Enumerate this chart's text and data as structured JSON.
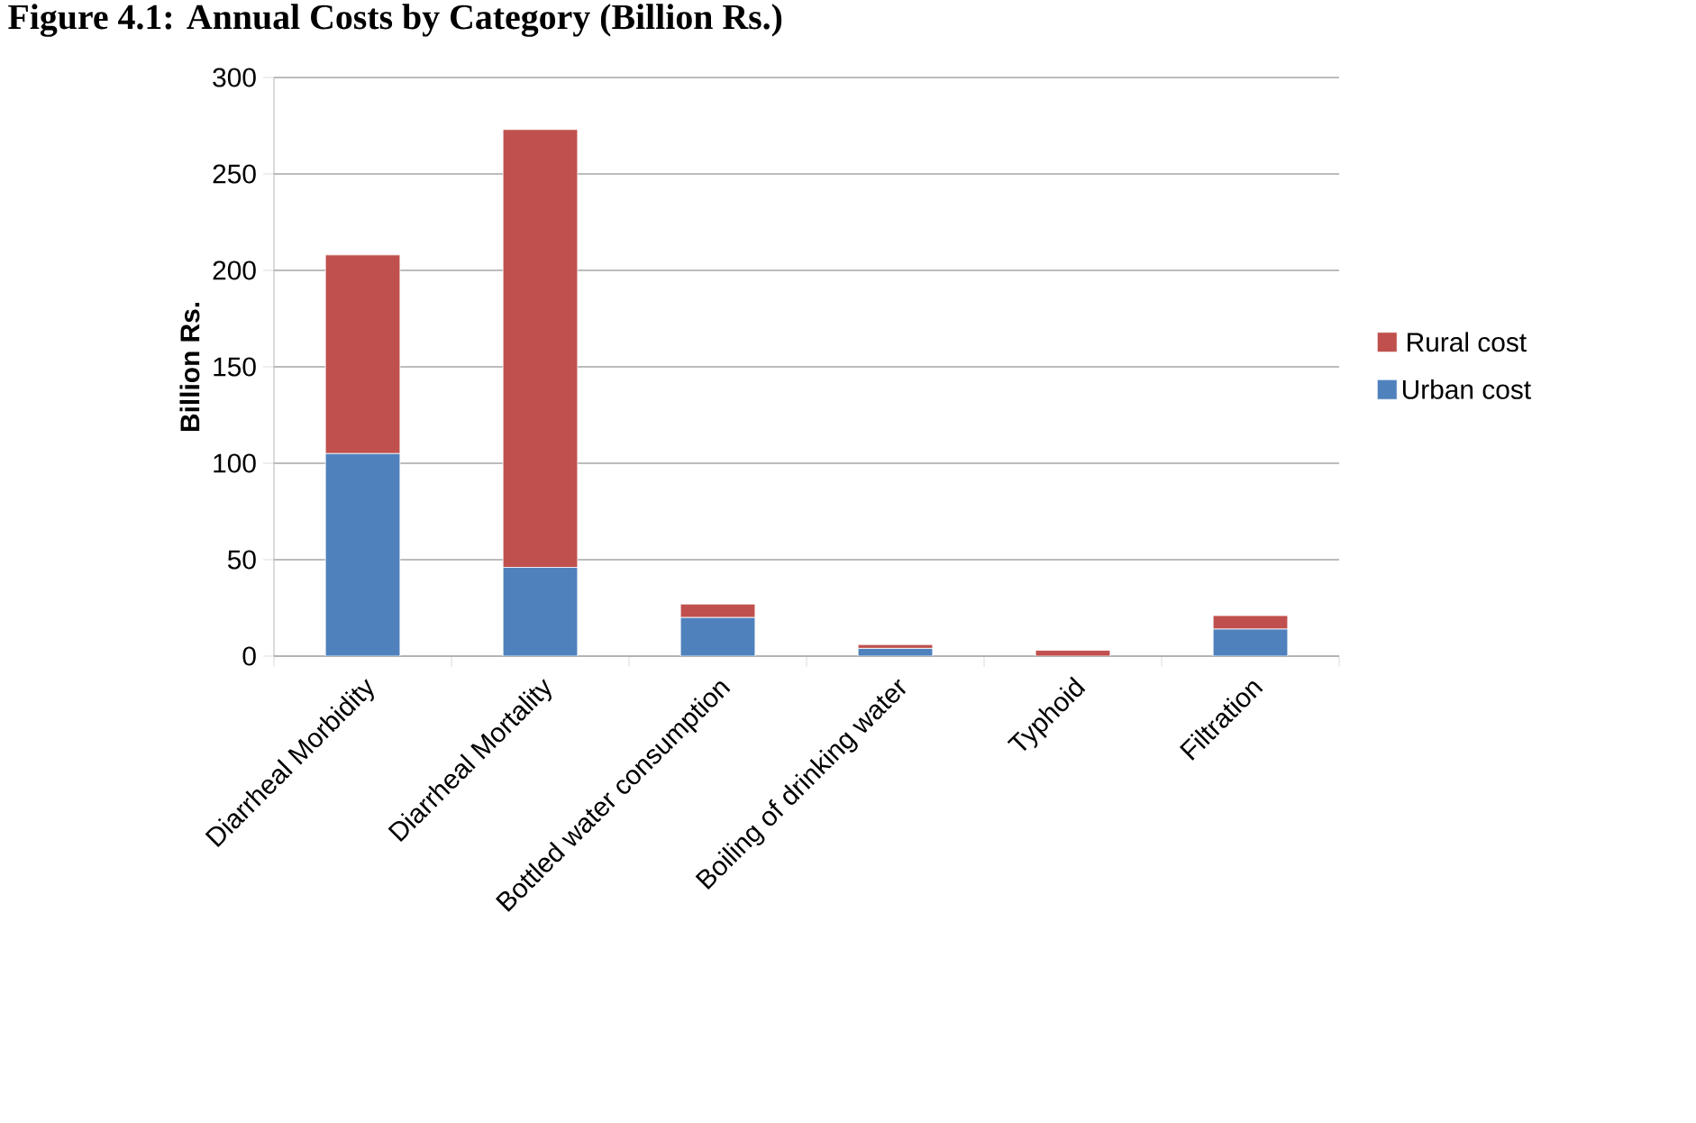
{
  "chart_data": {
    "type": "bar",
    "title": "Figure 4.1: Annual Costs by Category (Billion Rs.)",
    "ylabel": "Billion Rs.",
    "categories": [
      "Diarrheal Morbidity",
      "Diarrheal Mortality",
      "Bottled water consumption",
      "Boiling of drinking water",
      "Typhoid",
      "Filtration"
    ],
    "stacked": true,
    "series": [
      {
        "name": "Urban cost",
        "color": "#4f81bd",
        "values": [
          105,
          46,
          20,
          4,
          0,
          14
        ]
      },
      {
        "name": "Rural cost",
        "color": "#c0504d",
        "values": [
          103,
          227,
          7,
          2,
          3,
          7
        ]
      }
    ],
    "ylim": [
      0,
      300
    ],
    "yticks": [
      0,
      50,
      100,
      150,
      200,
      250,
      300
    ],
    "grid": "y",
    "legend": "right"
  }
}
